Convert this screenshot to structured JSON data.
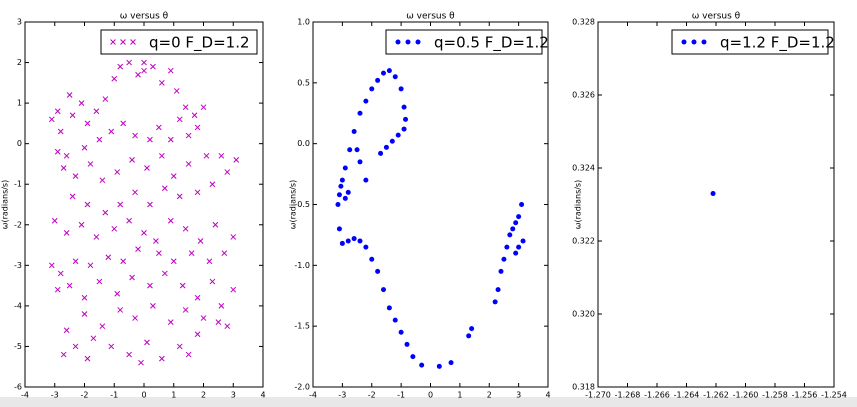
{
  "chart_data": [
    {
      "type": "scatter",
      "title": "ω versus θ",
      "y_label": "ω(radians/s)",
      "legend": "upper right",
      "xlim": [
        -4,
        4
      ],
      "ylim": [
        -6,
        3
      ],
      "xticks": [
        -4,
        -3,
        -2,
        -1,
        0,
        1,
        2,
        3,
        4
      ],
      "yticks": [
        -6,
        -5,
        -4,
        -3,
        -2,
        -1,
        0,
        1,
        2,
        3
      ],
      "series": [
        {
          "name": "q=0 F_D=1.2",
          "color": "#bf00bf",
          "marker": "x",
          "x": [
            -3.1,
            -2.9,
            -2.8,
            -2.5,
            -2.4,
            -2.1,
            -1.9,
            -1.6,
            -1.3,
            -1.0,
            -0.8,
            -0.5,
            -0.2,
            0.0,
            0.3,
            0.6,
            0.9,
            1.1,
            1.4,
            1.7,
            2.0,
            1.8,
            1.5,
            1.2,
            0.9,
            0.5,
            0.2,
            -0.3,
            -0.7,
            -1.1,
            -1.5,
            -2.0,
            -2.6,
            -2.9,
            -2.7,
            -2.3,
            -1.8,
            -1.4,
            -0.9,
            -0.4,
            0.1,
            0.6,
            1.0,
            1.5,
            2.1,
            2.6,
            3.1,
            2.8,
            2.3,
            1.8,
            1.2,
            0.7,
            0.2,
            -0.3,
            -0.8,
            -1.3,
            -1.9,
            -2.4,
            -3.0,
            -2.6,
            -2.1,
            -1.6,
            -1.0,
            -0.5,
            0.0,
            0.4,
            0.9,
            1.4,
            1.9,
            2.4,
            3.0,
            2.7,
            2.2,
            1.6,
            1.0,
            0.5,
            -0.2,
            -0.7,
            -1.2,
            -1.8,
            -2.3,
            -2.8,
            -3.1,
            -2.9,
            -2.5,
            -2.0,
            -1.5,
            -0.9,
            -0.4,
            0.2,
            0.7,
            1.3,
            1.8,
            2.3,
            3.0,
            2.6,
            2.0,
            1.4,
            0.9,
            0.3,
            -0.3,
            -0.8,
            -1.4,
            -2.0,
            -2.6,
            -2.3,
            -1.7,
            -1.1,
            -0.5,
            0.1,
            0.6,
            1.2,
            1.8,
            2.5,
            2.8,
            -2.7,
            -1.9,
            -0.1,
            1.5,
            0.0
          ],
          "values": [
            0.6,
            0.8,
            0.3,
            1.2,
            0.7,
            1.0,
            0.5,
            0.8,
            1.1,
            1.6,
            1.9,
            2.0,
            1.7,
            2.0,
            1.9,
            1.5,
            1.8,
            1.3,
            0.9,
            0.7,
            0.9,
            0.4,
            0.2,
            0.6,
            0.1,
            0.4,
            0.1,
            0.2,
            0.5,
            0.3,
            0.1,
            -0.1,
            -0.3,
            -0.2,
            -0.6,
            -0.8,
            -0.5,
            -0.9,
            -0.7,
            -0.4,
            -0.6,
            -0.3,
            -0.8,
            -0.5,
            -0.3,
            -0.3,
            -0.4,
            -0.7,
            -1.0,
            -1.2,
            -1.3,
            -1.1,
            -1.5,
            -1.2,
            -1.5,
            -1.7,
            -1.5,
            -1.3,
            -1.9,
            -2.2,
            -2.0,
            -2.3,
            -2.1,
            -1.9,
            -2.2,
            -2.4,
            -1.9,
            -2.1,
            -2.4,
            -2.0,
            -2.3,
            -2.7,
            -2.9,
            -2.7,
            -2.9,
            -2.7,
            -2.6,
            -2.9,
            -2.8,
            -3.0,
            -2.9,
            -3.2,
            -3.0,
            -3.6,
            -3.5,
            -3.8,
            -3.4,
            -3.7,
            -3.3,
            -3.5,
            -3.2,
            -3.5,
            -3.8,
            -3.4,
            -3.6,
            -4.0,
            -4.3,
            -4.1,
            -4.4,
            -4.0,
            -4.3,
            -4.1,
            -4.5,
            -4.2,
            -4.6,
            -5.0,
            -4.8,
            -5.0,
            -5.2,
            -4.9,
            -5.3,
            -5.0,
            -4.7,
            -4.4,
            -4.5,
            -5.2,
            -5.3,
            -5.4,
            -5.2,
            1.8
          ]
        }
      ]
    },
    {
      "type": "scatter",
      "title": "ω versus θ",
      "y_label": "ω(radians/s)",
      "legend": "upper right",
      "xlim": [
        -4,
        4
      ],
      "ylim": [
        -2,
        1
      ],
      "xticks": [
        -4,
        -3,
        -2,
        -1,
        0,
        1,
        2,
        3,
        4
      ],
      "yticks": [
        {
          "value": -2,
          "label": "-2.0"
        },
        -1.5,
        {
          "value": -1,
          "label": "-1.0"
        },
        -0.5,
        {
          "value": 0,
          "label": "0.0"
        },
        0.5,
        {
          "value": 1,
          "label": "1.0"
        }
      ],
      "series": [
        {
          "name": "q=0.5 F_D=1.2",
          "color": "#0000ff",
          "marker": "o",
          "x": [
            -3.15,
            -3.1,
            -3.05,
            -3.0,
            -2.9,
            -2.75,
            -2.6,
            -2.4,
            -2.2,
            -2.0,
            -1.8,
            -1.6,
            -1.4,
            -1.2,
            -1.0,
            -0.9,
            -0.85,
            -0.9,
            -1.1,
            -1.3,
            -1.5,
            -1.7,
            -2.2,
            -2.4,
            -2.5,
            -2.8,
            -2.9,
            -3.1,
            -3.0,
            -2.8,
            -2.6,
            -2.4,
            -2.2,
            -2.0,
            -1.8,
            -1.6,
            -1.4,
            -1.2,
            -1.0,
            -0.8,
            -0.6,
            -0.3,
            0.3,
            0.7,
            1.3,
            1.4,
            2.2,
            2.3,
            2.4,
            2.5,
            2.6,
            2.7,
            2.8,
            2.9,
            3.0,
            3.1,
            3.15,
            3.0,
            2.9
          ],
          "values": [
            -0.5,
            -0.42,
            -0.35,
            -0.3,
            -0.2,
            -0.05,
            0.1,
            0.25,
            0.35,
            0.45,
            0.52,
            0.58,
            0.6,
            0.55,
            0.45,
            0.3,
            0.2,
            0.12,
            0.07,
            0.02,
            -0.03,
            -0.08,
            -0.3,
            -0.15,
            -0.05,
            -0.4,
            -0.45,
            -0.7,
            -0.82,
            -0.8,
            -0.78,
            -0.8,
            -0.85,
            -0.95,
            -1.05,
            -1.2,
            -1.35,
            -1.45,
            -1.55,
            -1.65,
            -1.75,
            -1.82,
            -1.83,
            -1.8,
            -1.58,
            -1.52,
            -1.3,
            -1.2,
            -1.05,
            -0.95,
            -0.85,
            -0.75,
            -0.7,
            -0.65,
            -0.6,
            -0.5,
            -0.8,
            -0.85,
            -0.9
          ]
        }
      ]
    },
    {
      "type": "scatter",
      "title": "ω versus θ",
      "y_label": "ω(radians/s)",
      "legend": "upper right",
      "xlim": [
        -1.27,
        -1.254
      ],
      "ylim": [
        0.318,
        0.328
      ],
      "xticks": [
        {
          "value": -1.27,
          "label": "-1.270"
        },
        -1.268,
        -1.266,
        -1.264,
        -1.262,
        {
          "value": -1.26,
          "label": "-1.260"
        },
        -1.258,
        -1.256,
        -1.254
      ],
      "yticks": [
        0.318,
        {
          "value": 0.32,
          "label": "0.320"
        },
        0.322,
        0.324,
        0.326,
        0.328
      ],
      "series": [
        {
          "name": "q=1.2 F_D=1.2",
          "color": "#0000ff",
          "marker": "o",
          "x": [
            -1.2622
          ],
          "values": [
            0.3233
          ]
        }
      ]
    }
  ]
}
